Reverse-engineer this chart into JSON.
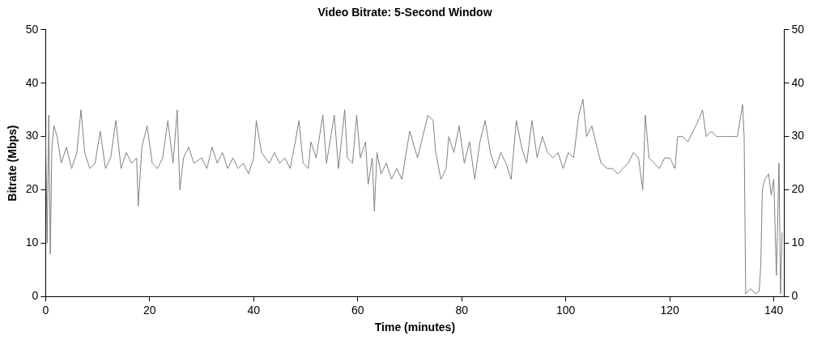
{
  "chart_data": {
    "type": "line",
    "title": "Video Bitrate: 5-Second Window",
    "xlabel": "Time (minutes)",
    "ylabel": "Bitrate (Mbps)",
    "xlim": [
      0,
      142
    ],
    "xticks": [
      0,
      20,
      40,
      60,
      80,
      100,
      120,
      140
    ],
    "ylim": [
      0,
      50
    ],
    "yticks": [
      0,
      10,
      20,
      30,
      40,
      50
    ],
    "y2lim": [
      0,
      50
    ],
    "y2ticks": [
      0,
      10,
      20,
      30,
      40,
      50
    ],
    "grid": false,
    "legend": false,
    "marker": "none",
    "line_style": "solid",
    "series": [
      {
        "color": "#808080",
        "x": [
          0,
          0.3,
          0.6,
          0.9,
          1.2,
          1.6,
          2.2,
          3,
          4,
          5,
          6,
          6.8,
          7.5,
          8.5,
          9.5,
          10.5,
          11.5,
          12.5,
          13.5,
          14.5,
          15.5,
          16.5,
          17.5,
          17.8,
          18.5,
          19.5,
          20.5,
          21.5,
          22.5,
          23.5,
          24.5,
          25.3,
          25.8,
          26.5,
          27.5,
          28.5,
          30,
          31,
          32,
          33,
          34,
          35,
          36,
          37,
          38,
          39,
          40,
          40.5,
          41.5,
          43,
          44,
          45,
          46,
          47,
          48,
          48.7,
          49.5,
          50.5,
          51,
          52,
          53.3,
          54,
          55.5,
          56.3,
          57.5,
          58,
          59,
          59.8,
          60.5,
          61.5,
          62,
          62.8,
          63.2,
          63.7,
          64.5,
          65.5,
          66.5,
          67.5,
          68.5,
          69.5,
          70,
          71.5,
          72.5,
          73.5,
          74.5,
          75,
          76,
          77,
          77.5,
          78.5,
          79.5,
          80.5,
          81.5,
          82.5,
          83.5,
          84.5,
          85.5,
          86.5,
          87.5,
          88.5,
          89.5,
          90.5,
          91.5,
          92.5,
          93.5,
          94.5,
          95.5,
          96.5,
          97.5,
          98.5,
          99.5,
          100.5,
          101.5,
          102.5,
          103.3,
          104,
          105,
          106,
          106.8,
          108,
          109,
          110,
          111,
          112,
          113,
          114,
          114.8,
          115.3,
          116,
          117,
          118,
          119,
          120,
          121,
          121.5,
          122.5,
          123.5,
          124.5,
          125.5,
          126.3,
          127,
          128,
          129,
          130,
          131,
          132,
          133,
          134,
          134.3,
          134.6,
          135.5,
          136.5,
          137.2,
          137.5,
          137.8,
          138.3,
          139,
          139.5,
          140,
          140.5,
          141,
          141.3,
          141.6
        ],
        "values": [
          30,
          10,
          34,
          8,
          28,
          32,
          30,
          25,
          28,
          24,
          27,
          35,
          27,
          24,
          25,
          31,
          24,
          26,
          33,
          24,
          27,
          25,
          26,
          17,
          28,
          32,
          25,
          24,
          26,
          33,
          25,
          35,
          20,
          26,
          28,
          25,
          26,
          24,
          28,
          25,
          27,
          24,
          26,
          24,
          25,
          23,
          26,
          33,
          27,
          25,
          27,
          25,
          26,
          24,
          29,
          33,
          25,
          24,
          29,
          26,
          34,
          25,
          34,
          24,
          35,
          26,
          25,
          34,
          26,
          29,
          21,
          26,
          16,
          27,
          23,
          25,
          22,
          24,
          22,
          28,
          31,
          26,
          30,
          34,
          33,
          27,
          22,
          24,
          30,
          27,
          32,
          25,
          29,
          22,
          29,
          33,
          27,
          24,
          27,
          25,
          22,
          33,
          28,
          25,
          33,
          26,
          30,
          27,
          26,
          27,
          24,
          27,
          26,
          34,
          37,
          30,
          32,
          28,
          25,
          24,
          24,
          23,
          24,
          25,
          27,
          26,
          20,
          34,
          26,
          25,
          24,
          26,
          26,
          24,
          30,
          30,
          29,
          31,
          33,
          35,
          30,
          31,
          30,
          30,
          30,
          30,
          30,
          36,
          30,
          0.5,
          1.5,
          0.5,
          1,
          6,
          20,
          22,
          23,
          19,
          22,
          4,
          25,
          0.5,
          12
        ]
      }
    ]
  }
}
